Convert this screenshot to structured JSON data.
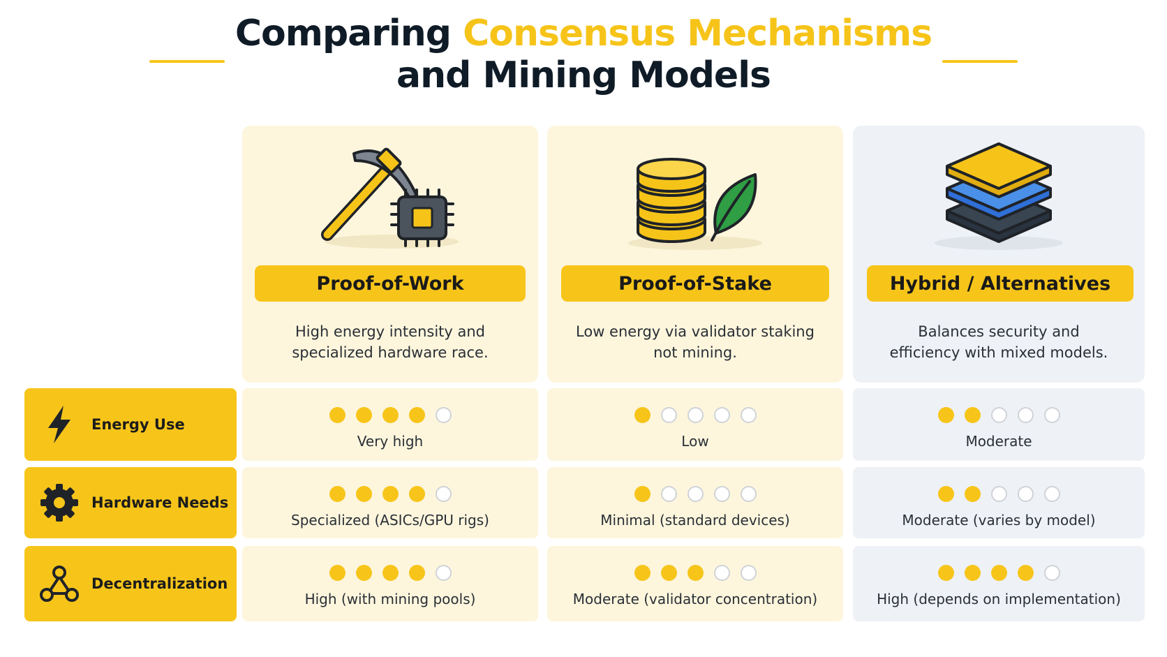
{
  "title": {
    "part1": "Comparing ",
    "accent": "Consensus Mechanisms",
    "line2": "and Mining Models"
  },
  "colors": {
    "accent": "#f7c51a",
    "dark": "#0f1b26",
    "warm_bg": "#fdf6dd",
    "cool_bg": "#eef1f6",
    "leaf": "#2f9e44",
    "blue": "#3b82f6"
  },
  "columns": [
    {
      "label": "Proof-of-Work",
      "icon": "pickaxe-chip-icon",
      "description": "High energy intensity and specialized hardware race."
    },
    {
      "label": "Proof-of-Stake",
      "icon": "coin-stack-leaf-icon",
      "description": "Low energy via validator staking not mining."
    },
    {
      "label": "Hybrid / Alternatives",
      "icon": "layer-stack-icon",
      "description": "Balances security and efficiency with mixed models."
    }
  ],
  "rows": [
    {
      "label": "Energy Use",
      "icon": "lightning-icon",
      "cells": [
        {
          "rating": 4,
          "max": 5,
          "text": "Very high"
        },
        {
          "rating": 1,
          "max": 5,
          "text": "Low"
        },
        {
          "rating": 2,
          "max": 5,
          "text": "Moderate"
        }
      ]
    },
    {
      "label": "Hardware Needs",
      "icon": "gear-icon",
      "cells": [
        {
          "rating": 4,
          "max": 5,
          "text": "Specialized (ASICs/GPU rigs)"
        },
        {
          "rating": 1,
          "max": 5,
          "text": "Minimal (standard devices)"
        },
        {
          "rating": 2,
          "max": 5,
          "text": "Moderate (varies by model)"
        }
      ]
    },
    {
      "label": "Decentralization",
      "icon": "network-icon",
      "cells": [
        {
          "rating": 4,
          "max": 5,
          "text": "High (with mining pools)"
        },
        {
          "rating": 3,
          "max": 5,
          "text": "Moderate (validator concentration)"
        },
        {
          "rating": 4,
          "max": 5,
          "text": "High (depends on implementation)"
        }
      ]
    }
  ]
}
